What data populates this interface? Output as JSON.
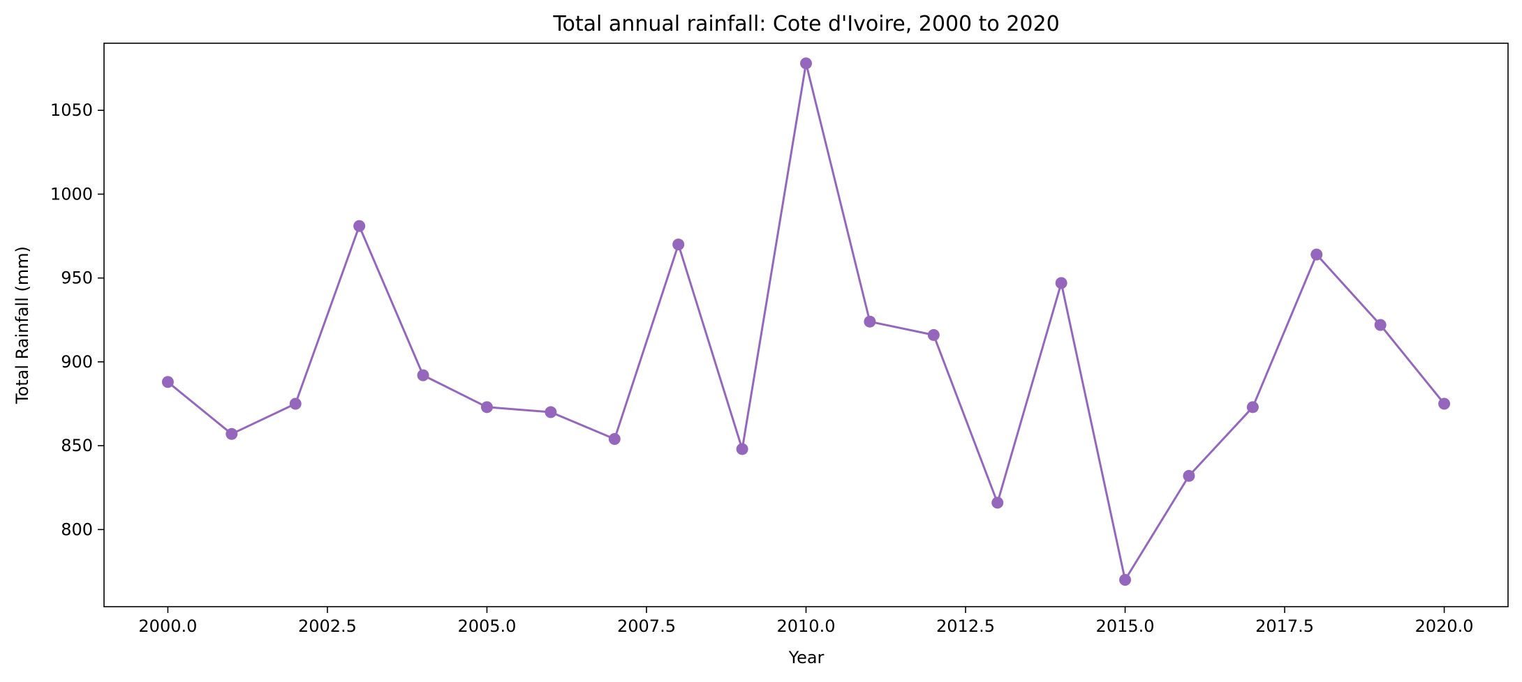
{
  "chart_data": {
    "type": "line",
    "title": "Total annual rainfall: Cote d'Ivoire, 2000 to 2020",
    "xlabel": "Year",
    "ylabel": "Total Rainfall (mm)",
    "x": [
      2000,
      2001,
      2002,
      2003,
      2004,
      2005,
      2006,
      2007,
      2008,
      2009,
      2010,
      2011,
      2012,
      2013,
      2014,
      2015,
      2016,
      2017,
      2018,
      2019,
      2020
    ],
    "series": [
      {
        "values": [
          888,
          857,
          875,
          981,
          892,
          873,
          870,
          854,
          970,
          848,
          1078,
          924,
          916,
          816,
          947,
          770,
          832,
          873,
          964,
          922,
          875
        ],
        "color": "#9467bd",
        "marker": "circle"
      }
    ],
    "xlim": [
      1999.0,
      2021.0
    ],
    "ylim": [
      754,
      1090
    ],
    "x_ticks": [
      2000.0,
      2002.5,
      2005.0,
      2007.5,
      2010.0,
      2012.5,
      2015.0,
      2017.5,
      2020.0
    ],
    "x_tick_labels": [
      "2000.0",
      "2002.5",
      "2005.0",
      "2007.5",
      "2010.0",
      "2012.5",
      "2015.0",
      "2017.5",
      "2020.0"
    ],
    "y_ticks": [
      800,
      850,
      900,
      950,
      1000,
      1050
    ],
    "y_tick_labels": [
      "800",
      "850",
      "900",
      "950",
      "1000",
      "1050"
    ],
    "grid": false,
    "legend": "none"
  }
}
